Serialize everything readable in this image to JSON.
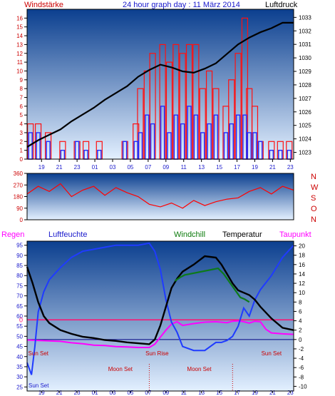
{
  "colors": {
    "panel_border": "#000000",
    "grad_top": "#0b3f8f",
    "grad_bottom": "#e3f0ff",
    "wind_avg": "#1f2bff",
    "wind_gust": "#ff1010",
    "pressure": "#000000",
    "direction": "#ff0000",
    "humidity": "#1f3bff",
    "temperature": "#000000",
    "windchill": "#0d7a1a",
    "dewpoint": "#ff00ff",
    "rain": "#ff1070",
    "label_red": "#cc0000",
    "label_blue": "#1a1acc",
    "label_green": "#0a7a0a",
    "label_magenta": "#ff00ff"
  },
  "header": {
    "left": "Windstärke",
    "center": "24 hour graph day : 11 März 2014",
    "right": "Luftdruck"
  },
  "chart_data": [
    {
      "type": "bar",
      "title": "24 hour graph day : 11 März 2014",
      "left_axis": {
        "label": "Windstärke",
        "ylim": [
          0,
          17
        ],
        "ticks": [
          "0",
          "1",
          "2",
          "3",
          "4",
          "5",
          "6",
          "7",
          "8",
          "9",
          "10",
          "11",
          "12",
          "13",
          "14",
          "15",
          "16"
        ]
      },
      "right_axis": {
        "label": "Luftdruck",
        "ylim": [
          1022.5,
          1033.6
        ],
        "ticks": [
          "1023",
          "1024",
          "1025",
          "1026",
          "1027",
          "1028",
          "1029",
          "1030",
          "1031",
          "1032",
          "1033"
        ]
      },
      "xlim": [
        0,
        24
      ],
      "x_ticks": [
        "19",
        "21",
        "23",
        "01",
        "03",
        "05",
        "07",
        "09",
        "11",
        "13",
        "15",
        "17",
        "19",
        "21",
        "23"
      ],
      "series": [
        {
          "name": "Windstärke",
          "type": "bar",
          "x": [
            0.3,
            1.0,
            1.9,
            3.2,
            4.5,
            5.3,
            6.5,
            8.8,
            9.8,
            10.2,
            10.8,
            11.3,
            12.2,
            12.8,
            13.4,
            14.0,
            14.6,
            15.2,
            15.8,
            16.4,
            17.0,
            17.9,
            18.4,
            19.0,
            19.6,
            20.0,
            20.5,
            21.0,
            22.0,
            22.8,
            23.6
          ],
          "values": [
            3,
            3,
            2,
            1,
            2,
            1,
            1,
            2,
            2,
            3,
            5,
            4,
            6,
            3,
            5,
            4,
            6,
            5,
            3,
            4,
            5,
            3,
            4,
            5,
            5,
            3,
            3,
            2,
            1,
            1,
            1
          ]
        },
        {
          "name": "Böen",
          "type": "bar",
          "x": [
            0.3,
            1.0,
            1.9,
            3.2,
            4.5,
            5.3,
            6.5,
            8.8,
            9.8,
            10.2,
            10.8,
            11.3,
            12.2,
            12.8,
            13.4,
            14.0,
            14.6,
            15.2,
            15.8,
            16.4,
            17.0,
            17.9,
            18.4,
            19.0,
            19.6,
            20.0,
            20.5,
            21.0,
            22.0,
            22.8,
            23.6
          ],
          "values": [
            4,
            4,
            3,
            2,
            2,
            2,
            2,
            2,
            4,
            8,
            10,
            12,
            13,
            11,
            13,
            12,
            13,
            13,
            8,
            10,
            8,
            6,
            9,
            12,
            16,
            8,
            6,
            2,
            2,
            2,
            2
          ]
        },
        {
          "name": "Luftdruck",
          "type": "line",
          "x": [
            0,
            1,
            2,
            3,
            4,
            5,
            6,
            7,
            8,
            9,
            10,
            11,
            12,
            13,
            14,
            15,
            16,
            17,
            18,
            19,
            20,
            21,
            22,
            23,
            24
          ],
          "values": [
            1023.4,
            1023.9,
            1024.3,
            1024.7,
            1025.3,
            1025.8,
            1026.3,
            1026.9,
            1027.4,
            1027.9,
            1028.6,
            1029.1,
            1029.5,
            1029.3,
            1029.0,
            1028.9,
            1029.2,
            1029.6,
            1030.3,
            1031.0,
            1031.5,
            1031.9,
            1032.2,
            1032.6,
            1032.6
          ]
        }
      ]
    },
    {
      "type": "line",
      "left_axis": {
        "ylim": [
          0,
          360
        ],
        "ticks": [
          "0",
          "90",
          "180",
          "270",
          "360"
        ]
      },
      "right_axis_labels": [
        "N",
        "W",
        "S",
        "O",
        "N"
      ],
      "xlim": [
        0,
        24
      ],
      "series": [
        {
          "name": "Windrichtung",
          "x": [
            0,
            1,
            2,
            3,
            4,
            5,
            6,
            7,
            8,
            9,
            10,
            11,
            12,
            13,
            14,
            15,
            16,
            17,
            18,
            19,
            20,
            21,
            22,
            23,
            24
          ],
          "values": [
            200,
            260,
            220,
            280,
            180,
            230,
            260,
            190,
            250,
            210,
            180,
            120,
            100,
            130,
            90,
            150,
            110,
            140,
            160,
            170,
            220,
            250,
            200,
            260,
            230
          ]
        }
      ]
    },
    {
      "type": "line",
      "legend": [
        "Regen",
        "Luftfeuchte",
        "Windchill",
        "Temperatur",
        "Taupunkt"
      ],
      "left_axis": {
        "label": "Luftfeuchte",
        "ylim": [
          23,
          97
        ],
        "ticks": [
          "25",
          "30",
          "35",
          "40",
          "45",
          "50",
          "55",
          "60",
          "65",
          "70",
          "75",
          "80",
          "85",
          "90",
          "95"
        ]
      },
      "right_axis": {
        "label": "Temperatur",
        "ylim": [
          -11,
          21
        ],
        "ticks": [
          "-10",
          "-8",
          "-6",
          "-4",
          "-2",
          "0",
          "2",
          "4",
          "6",
          "8",
          "10",
          "12",
          "14",
          "16",
          "18",
          "20"
        ]
      },
      "xlim": [
        0,
        24
      ],
      "x_ticks": [
        "19",
        "21",
        "23",
        "01",
        "03",
        "05",
        "07",
        "09",
        "11",
        "13",
        "15",
        "17",
        "19",
        "21",
        "23"
      ],
      "rain_zero_label": "0",
      "annotations": [
        {
          "text": "Sun Set",
          "x": 0.1
        },
        {
          "text": "Sun Rise",
          "x": 11.7
        },
        {
          "text": "Sun Set",
          "x": 22.0
        },
        {
          "text": "Moon Set",
          "x": 8.4
        },
        {
          "text": "Moon Set",
          "x": 15.5
        },
        {
          "text": "Sun Set",
          "x": 0.1,
          "axis_label": "Sun Set"
        }
      ],
      "series": [
        {
          "name": "Luftfeuchte",
          "x": [
            0,
            0.4,
            0.7,
            1,
            1.5,
            2,
            3,
            4,
            5,
            6,
            7,
            8,
            9,
            10,
            11,
            11.5,
            12,
            12.5,
            13,
            13.5,
            14,
            15,
            16,
            17,
            17.5,
            18,
            18.5,
            19,
            19.5,
            20,
            20.5,
            21,
            22,
            23,
            24
          ],
          "values": [
            37,
            31,
            45,
            62,
            72,
            78,
            84,
            89,
            92,
            93,
            94,
            95,
            95,
            95,
            96,
            92,
            83,
            68,
            57,
            52,
            45,
            43,
            43,
            47,
            47,
            48,
            50,
            55,
            64,
            60,
            68,
            73,
            80,
            89,
            95
          ]
        },
        {
          "name": "Temperatur",
          "x": [
            0,
            0.5,
            1,
            1.5,
            2,
            3,
            4,
            5,
            6,
            7,
            8,
            9,
            10,
            11,
            11.5,
            12,
            12.5,
            13,
            13.5,
            14,
            15,
            16,
            17,
            17.5,
            18,
            18.5,
            19,
            19.5,
            20,
            20.5,
            21,
            22,
            23,
            24
          ],
          "values": [
            15.5,
            12,
            8,
            5,
            3.5,
            2,
            1.2,
            0.6,
            0.3,
            -0.1,
            -0.3,
            -0.6,
            -0.8,
            -1,
            0,
            3,
            7,
            11,
            13,
            14.5,
            16,
            17.8,
            17.5,
            16,
            14,
            12,
            10.5,
            10,
            9.5,
            8.5,
            7,
            4.5,
            2.5,
            2
          ]
        },
        {
          "name": "Windchill",
          "x": [
            13.3,
            13.8,
            14.2,
            17.2,
            17.7,
            19.2,
            19.6,
            20.0
          ],
          "values": [
            12.5,
            13.3,
            13.8,
            15.2,
            14.0,
            9.0,
            8.6,
            8.0
          ]
        },
        {
          "name": "Taupunkt",
          "x": [
            0,
            1,
            2,
            3,
            4,
            5,
            6,
            7,
            8,
            9,
            10,
            11,
            11.5,
            12,
            12.5,
            13,
            13.5,
            14,
            15,
            16,
            17,
            18,
            18.5,
            19,
            19.5,
            20,
            20.5,
            21,
            21.5,
            22,
            23,
            24
          ],
          "values": [
            -0.1,
            -0.2,
            -0.3,
            -0.4,
            -0.7,
            -0.9,
            -1.2,
            -1.3,
            -1.5,
            -1.6,
            -1.7,
            -1.7,
            -1.0,
            0.5,
            2,
            3.3,
            3.8,
            3.0,
            3.4,
            3.7,
            3.8,
            3.6,
            3.9,
            4.0,
            3.8,
            3.5,
            3.9,
            3.8,
            2.2,
            1.4,
            1.2,
            1.1
          ]
        },
        {
          "name": "Regen",
          "x": [
            0,
            24
          ],
          "values": [
            0,
            0
          ]
        }
      ]
    }
  ],
  "panel3_labels": {
    "regen": "Regen",
    "luftfeuchte": "Luftfeuchte",
    "windchill": "Windchill",
    "temperatur": "Temperatur",
    "taupunkt": "Taupunkt"
  }
}
